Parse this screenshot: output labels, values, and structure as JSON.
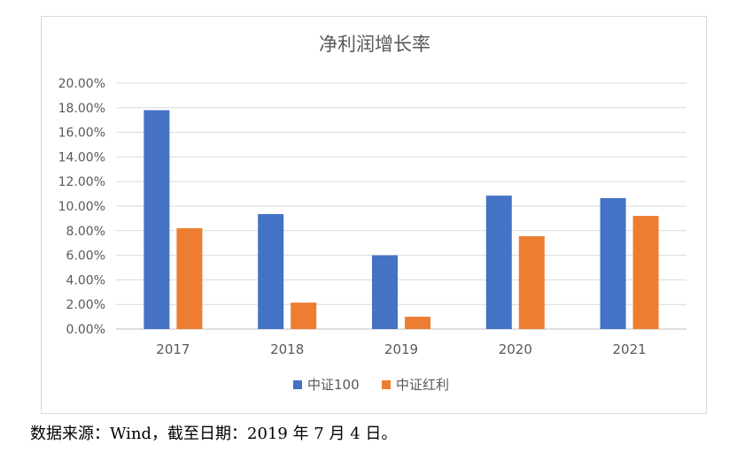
{
  "chart_data": {
    "type": "bar",
    "title": "净利润增长率",
    "categories": [
      "2017",
      "2018",
      "2019",
      "2020",
      "2021"
    ],
    "series": [
      {
        "name": "中证100",
        "values": [
          17.8,
          9.35,
          6.0,
          10.85,
          10.65
        ],
        "color": "#4472C4"
      },
      {
        "name": "中证红利",
        "values": [
          8.2,
          2.15,
          1.0,
          7.55,
          9.2
        ],
        "color": "#ED7D31"
      }
    ],
    "y_tick_labels": [
      "0.00%",
      "2.00%",
      "4.00%",
      "6.00%",
      "8.00%",
      "10.00%",
      "12.00%",
      "14.00%",
      "16.00%",
      "18.00%",
      "20.00%"
    ],
    "ylim": [
      0,
      20
    ],
    "ytick_step": 2,
    "xlabel": "",
    "ylabel": "",
    "grid": true,
    "legend_position": "bottom"
  },
  "source_note": "数据来源：Wind，截至日期：2019 年 7 月 4 日。"
}
